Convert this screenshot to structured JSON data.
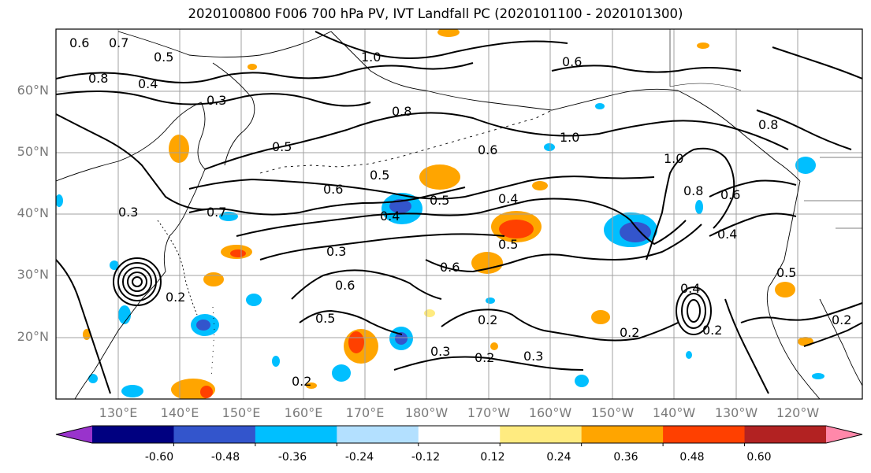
{
  "title": "2020100800 F006 700 hPa PV, IVT Landfall PC (2020101100 - 2020101300)",
  "lat_labels": [
    "60°N",
    "50°N",
    "40°N",
    "30°N",
    "20°N"
  ],
  "lon_labels": [
    "130°E",
    "140°E",
    "150°E",
    "160°E",
    "170°E",
    "180°W",
    "170°W",
    "160°W",
    "150°W",
    "140°W",
    "130°W",
    "120°W"
  ],
  "colorbar": {
    "colors": [
      "#9933cc",
      "#000080",
      "#3355cc",
      "#00bfff",
      "#b3e0ff",
      "#ffffff",
      "#ffeb80",
      "#ffa500",
      "#ff4000",
      "#b22222",
      "#ff88aa"
    ],
    "tick_labels": [
      "-0.60",
      "-0.48",
      "-0.36",
      "-0.24",
      "-0.12",
      "0.12",
      "0.24",
      "0.36",
      "0.48",
      "0.60"
    ]
  },
  "contour_labels": [
    "0.6",
    "0.7",
    "0.5",
    "0.8",
    "0.4",
    "0.3",
    "1.0",
    "0.8",
    "0.6",
    "1.0",
    "0.5",
    "0.6",
    "0.5",
    "0.4",
    "0.5",
    "0.6",
    "0.3",
    "0.6",
    "0.5",
    "0.2",
    "0.3",
    "0.2",
    "0.2",
    "0.4",
    "0.5",
    "0.2",
    "0.4",
    "0.3",
    "0.2",
    "1.0",
    "0.8",
    "0.6",
    "0.4",
    "0.8",
    "0.5",
    "0.2",
    "0.6",
    "0.7",
    "0.2",
    "0.3"
  ]
}
